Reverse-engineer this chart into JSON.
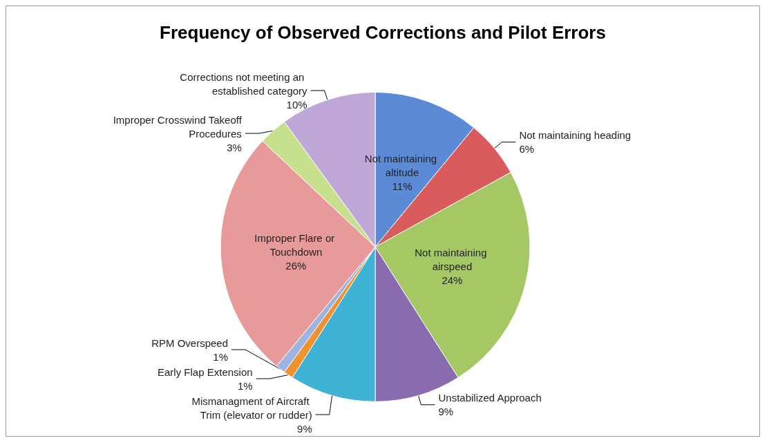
{
  "chart_data": {
    "type": "pie",
    "title": "Frequency of Observed Corrections and Pilot Errors",
    "categories": [
      "Not maintaining altitude",
      "Not maintaining heading",
      "Not maintaining airspeed",
      "Unstabilized Approach",
      "Mismanagment of Aircraft Trim (elevator or rudder)",
      "Early Flap Extension",
      "RPM Overspeed",
      "Improper Flare or Touchdown",
      "Improper Crosswind Takeoff Procedures",
      "Corrections not meeting an established category"
    ],
    "values": [
      11,
      6,
      24,
      9,
      9,
      1,
      1,
      26,
      3,
      10
    ],
    "value_labels": [
      "11%",
      "6%",
      "24%",
      "9%",
      "9%",
      "1%",
      "1%",
      "26%",
      "3%",
      "10%"
    ],
    "colors": [
      "#5b8bd6",
      "#d95b5b",
      "#a5c864",
      "#8a6bb0",
      "#3fb3d6",
      "#f0922e",
      "#9bb4e0",
      "#e8999a",
      "#c6e08e",
      "#bfa7d8"
    ],
    "legend": false
  }
}
